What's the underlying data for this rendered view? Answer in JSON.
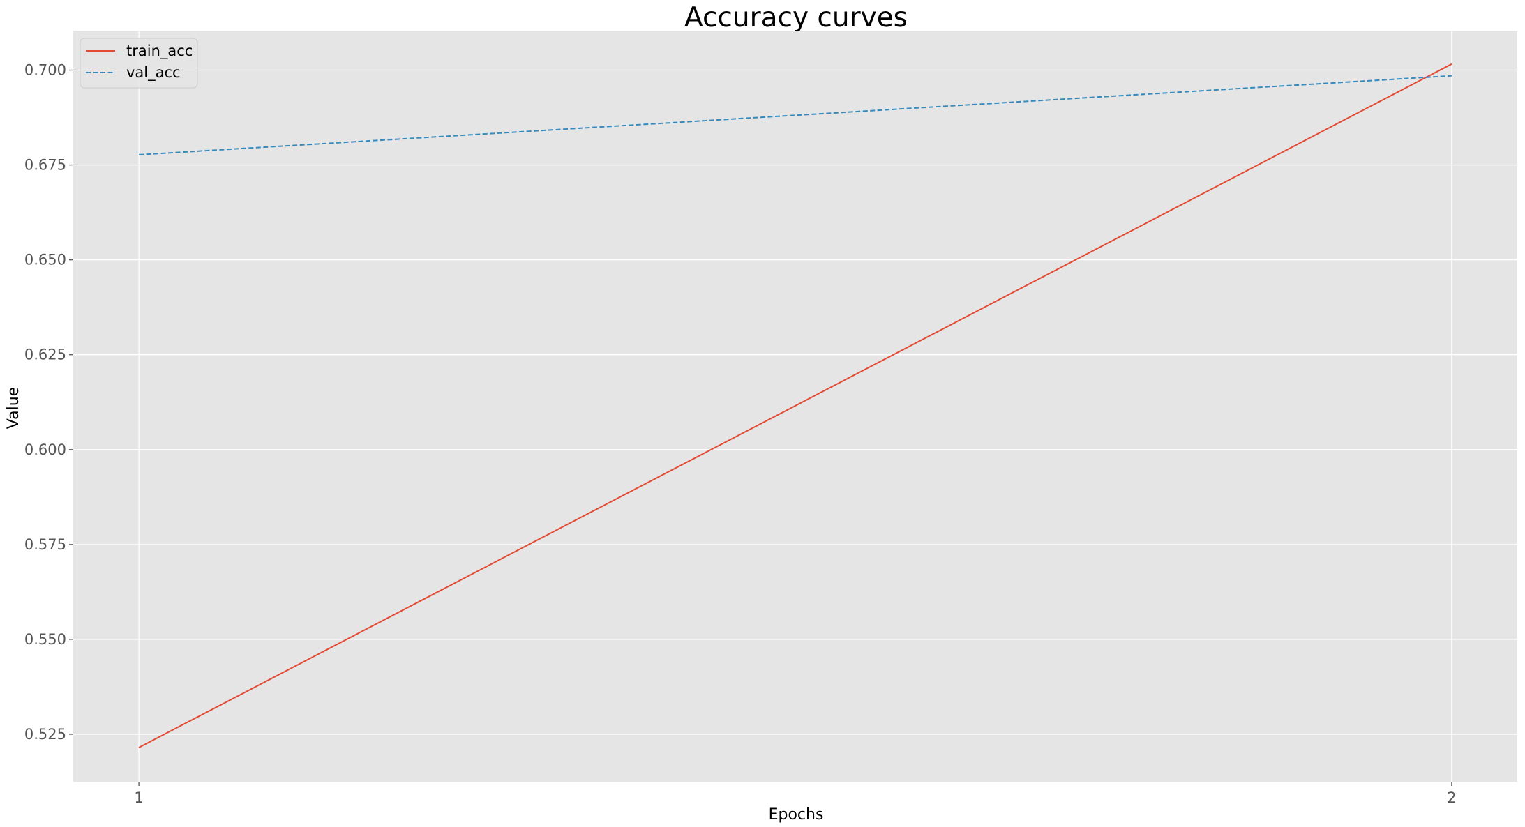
{
  "chart_data": {
    "type": "line",
    "title": "Accuracy curves",
    "xlabel": "Epochs",
    "ylabel": "Value",
    "x": [
      1,
      2
    ],
    "x_ticks": [
      "1",
      "2"
    ],
    "xlim": [
      0.95,
      2.05
    ],
    "ylim": [
      0.5125,
      0.7102
    ],
    "y_ticks": [
      "0.525",
      "0.550",
      "0.575",
      "0.600",
      "0.625",
      "0.650",
      "0.675",
      "0.700"
    ],
    "y_tick_values": [
      0.525,
      0.55,
      0.575,
      0.6,
      0.625,
      0.65,
      0.675,
      0.7
    ],
    "grid": true,
    "legend_position": "top-left",
    "plot_background": "#E5E5E5",
    "grid_color": "#FFFFFF",
    "series": [
      {
        "name": "train_acc",
        "values": [
          0.5215,
          0.7016
        ],
        "color": "#E24A33",
        "style": "solid"
      },
      {
        "name": "val_acc",
        "values": [
          0.6777,
          0.6985
        ],
        "color": "#348ABD",
        "style": "dashed"
      }
    ]
  }
}
